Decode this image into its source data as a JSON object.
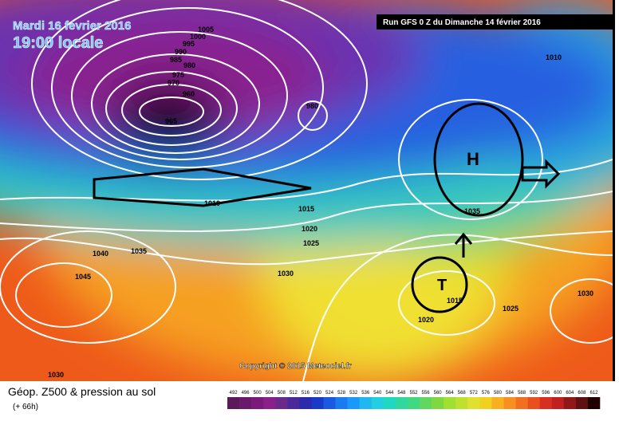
{
  "header": {
    "date": "Mardi 16 février 2016",
    "time": "19:00 locale",
    "run": "Run GFS 0 Z du Dimanche 14 février 2016"
  },
  "map": {
    "isobar_labels": [
      1005,
      1000,
      995,
      990,
      985,
      980,
      975,
      970,
      960,
      965,
      980,
      1010,
      1015,
      1020,
      1025,
      1030,
      1035,
      1040,
      1045,
      1035,
      1015,
      1020,
      1025,
      1030,
      1010,
      1030
    ],
    "centers": [
      "H",
      "T"
    ],
    "copyright": "Copyright © 2015 Meteociel.fr"
  },
  "legend": {
    "title": "Géop. Z500 & pression au sol",
    "lead_time": "(+ 66h)",
    "scale": [
      492,
      496,
      500,
      504,
      508,
      512,
      516,
      520,
      524,
      528,
      532,
      536,
      540,
      544,
      548,
      552,
      556,
      560,
      564,
      568,
      572,
      576,
      580,
      584,
      588,
      592,
      596,
      600,
      604,
      608,
      612
    ],
    "colors": [
      "#5a1a5a",
      "#6a1a6a",
      "#7a1a7a",
      "#8a208a",
      "#6a2a8a",
      "#4a2a9a",
      "#2a2aaa",
      "#1a3ac8",
      "#1a5ae0",
      "#1a7af0",
      "#1a9af8",
      "#20b8f0",
      "#20d0e0",
      "#20d8c0",
      "#30d8a0",
      "#40d880",
      "#60d860",
      "#80d840",
      "#a0e030",
      "#c0e030",
      "#e0e030",
      "#f0d020",
      "#f8b020",
      "#f89020",
      "#f07020",
      "#e85020",
      "#d83020",
      "#c02020",
      "#901818",
      "#601010",
      "#200000"
    ]
  }
}
